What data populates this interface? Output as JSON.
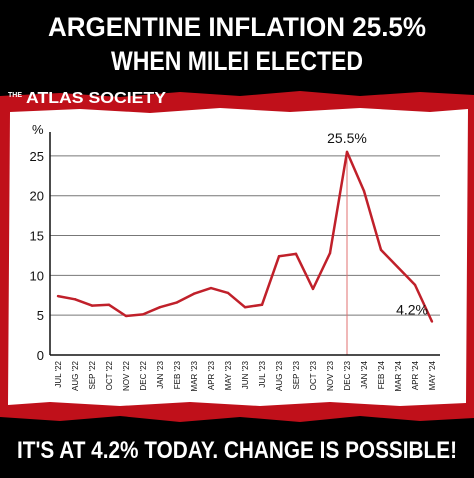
{
  "headline": {
    "line1": "ARGENTINE INFLATION 25.5%",
    "line2": "WHEN MILEI ELECTED"
  },
  "brand": {
    "the": "THE",
    "name": "ATLAS SOCIETY"
  },
  "footer": {
    "text": "IT'S AT 4.2% TODAY. CHANGE IS POSSIBLE!"
  },
  "colors": {
    "background": "#000000",
    "red_band": "#c0101a",
    "panel": "#ffffff",
    "line": "#c0202a",
    "highlight_marker": "#e07070"
  },
  "chart_data": {
    "type": "line",
    "yunit": "%",
    "ylim": [
      0,
      27
    ],
    "yticks": [
      0,
      5,
      10,
      15,
      20,
      25
    ],
    "grid": true,
    "categories": [
      "JUL '22",
      "AUG '22",
      "SEP '22",
      "OCT '22",
      "NOV '22",
      "DEC '22",
      "JAN '23",
      "FEB '23",
      "MAR '23",
      "APR '23",
      "MAY '23",
      "JUN '23",
      "JUL '23",
      "AUG '23",
      "SEP '23",
      "OCT '23",
      "NOV '23",
      "DEC '23",
      "JAN '24",
      "FEB '24",
      "MAR '24",
      "APR '24",
      "MAY '24"
    ],
    "series": [
      {
        "values": [
          7.4,
          7.0,
          6.2,
          6.3,
          4.9,
          5.1,
          6.0,
          6.6,
          7.7,
          8.4,
          7.8,
          6.0,
          6.3,
          12.4,
          12.7,
          8.3,
          12.8,
          25.5,
          20.6,
          13.2,
          11.0,
          8.8,
          4.2
        ]
      }
    ],
    "annotations": [
      {
        "category": "DEC '23",
        "text": "25.5%",
        "marker": "vertical-line"
      },
      {
        "category": "MAY '24",
        "text": "4.2%"
      }
    ]
  }
}
